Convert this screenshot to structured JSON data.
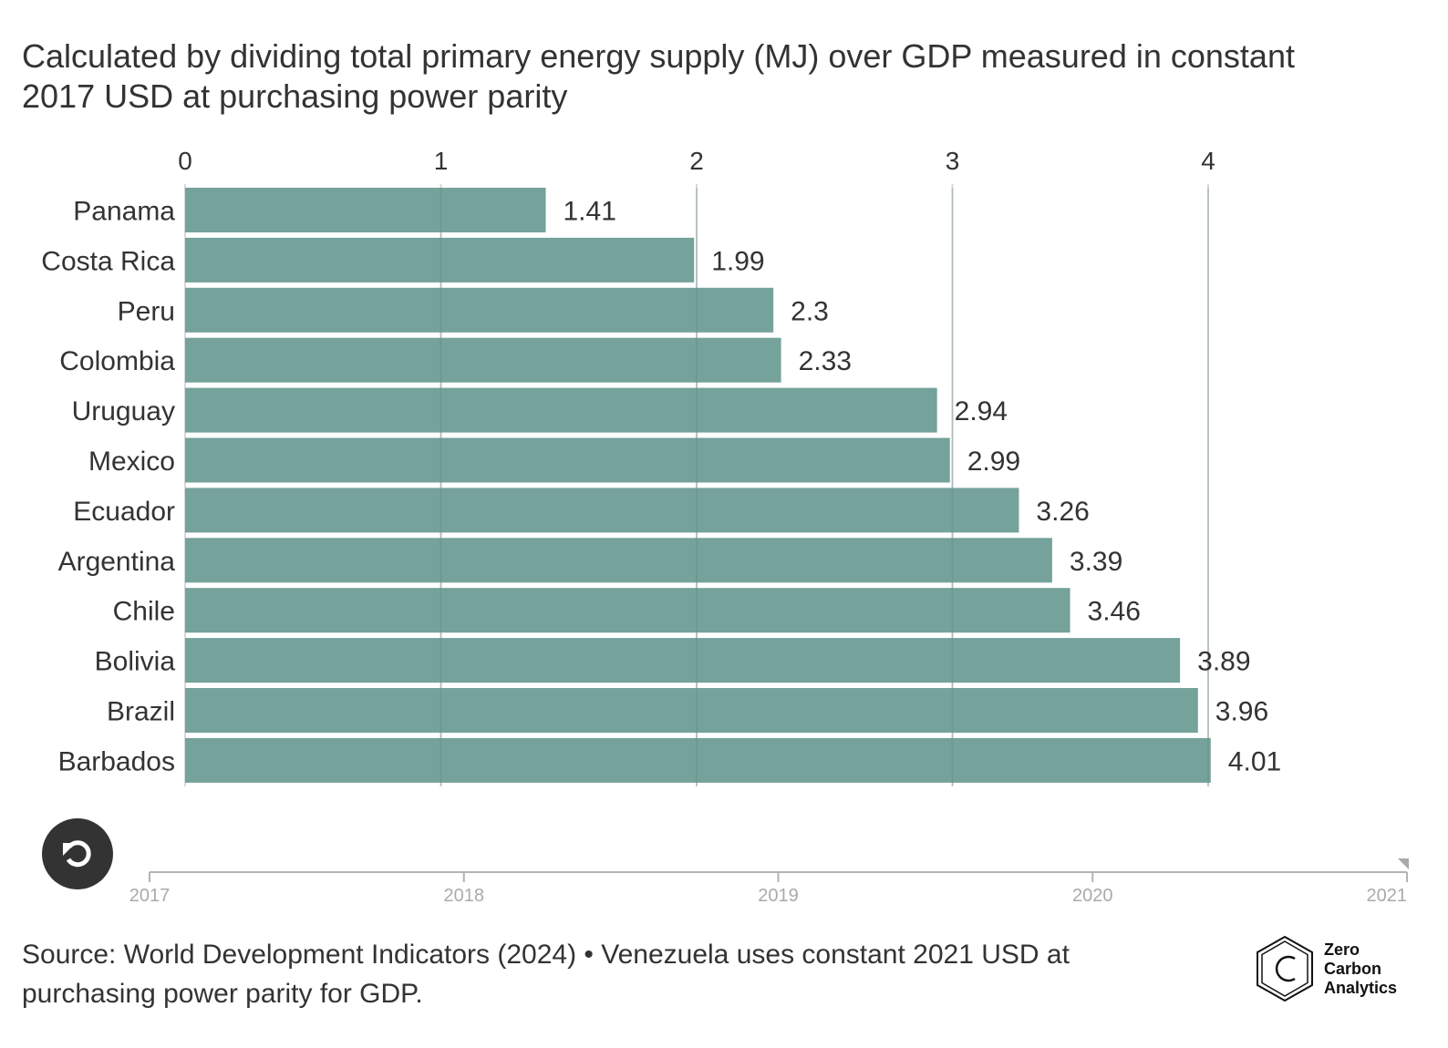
{
  "header": {
    "subtitle": "Calculated by dividing total primary energy supply (MJ) over GDP measured in constant 2017 USD at purchasing power parity"
  },
  "chart_data": {
    "type": "bar",
    "orientation": "horizontal",
    "title": "",
    "subtitle": "Calculated by dividing total primary energy supply (MJ) over GDP measured in constant 2017 USD at purchasing power parity",
    "xlabel": "",
    "ylabel": "",
    "xlim": [
      0,
      4.3
    ],
    "x_ticks": [
      0,
      1,
      2,
      3,
      4
    ],
    "x_axis_position": "top",
    "grid": true,
    "bar_color": "#719f98",
    "categories": [
      "Panama",
      "Costa Rica",
      "Peru",
      "Colombia",
      "Uruguay",
      "Mexico",
      "Ecuador",
      "Argentina",
      "Chile",
      "Bolivia",
      "Brazil",
      "Barbados"
    ],
    "values": [
      1.41,
      1.99,
      2.3,
      2.33,
      2.94,
      2.99,
      3.26,
      3.39,
      3.46,
      3.89,
      3.96,
      4.01
    ],
    "value_labels": [
      "1.41",
      "1.99",
      "2.3",
      "2.33",
      "2.94",
      "2.99",
      "3.26",
      "3.39",
      "3.46",
      "3.89",
      "3.96",
      "4.01"
    ]
  },
  "timeline": {
    "years": [
      "2017",
      "2018",
      "2019",
      "2020",
      "2021"
    ],
    "current": "2021",
    "replay_icon": "replay-icon"
  },
  "footer": {
    "source": "Source: World Development Indicators (2024) • Venezuela uses constant 2021 USD at purchasing power parity for GDP.",
    "logo_lines": [
      "Zero",
      "Carbon",
      "Analytics"
    ]
  }
}
